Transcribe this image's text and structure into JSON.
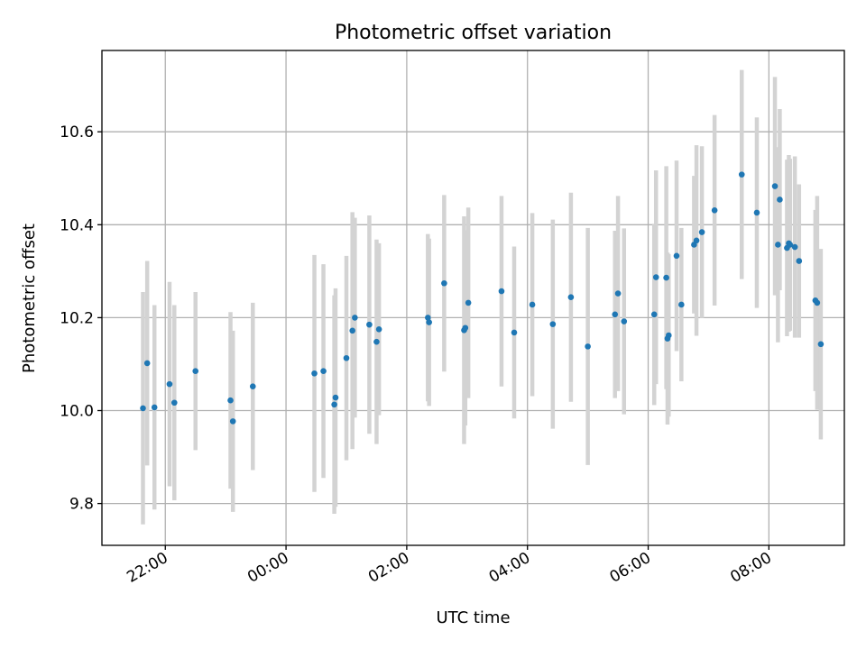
{
  "chart_data": {
    "type": "scatter",
    "title": "Photometric offset variation",
    "xlabel": "UTC time",
    "ylabel": "Photometric offset",
    "x_unit": "hours",
    "xlim": [
      20.95,
      33.25
    ],
    "ylim": [
      9.71,
      10.775
    ],
    "x_ticks": [
      {
        "value": 22,
        "label": "22:00"
      },
      {
        "value": 24,
        "label": "00:00"
      },
      {
        "value": 26,
        "label": "02:00"
      },
      {
        "value": 28,
        "label": "04:00"
      },
      {
        "value": 30,
        "label": "06:00"
      },
      {
        "value": 32,
        "label": "08:00"
      }
    ],
    "y_ticks": [
      9.8,
      10.0,
      10.2,
      10.4,
      10.6
    ],
    "grid": true,
    "colors": {
      "point": "#1f77b4",
      "errorbar": "#d3d3d3"
    },
    "series": [
      {
        "x_time": [
          "21:38",
          "21:42",
          "21:49",
          "22:04",
          "22:09",
          "22:30",
          "23:05",
          "23:07",
          "23:27",
          "00:28",
          "00:37",
          "00:48",
          "00:49",
          "01:00",
          "01:06",
          "01:08",
          "01:23",
          "01:30",
          "01:32",
          "02:21",
          "02:22",
          "02:37",
          "02:57",
          "02:58",
          "03:01",
          "03:34",
          "03:47",
          "04:05",
          "04:25",
          "04:43",
          "05:00",
          "05:27",
          "05:30",
          "05:36",
          "06:06",
          "06:08",
          "06:18",
          "06:19",
          "06:20",
          "06:28",
          "06:33",
          "06:46",
          "06:48",
          "06:53",
          "07:06",
          "07:33",
          "07:48",
          "08:06",
          "08:09",
          "08:11",
          "08:18",
          "08:20",
          "08:21",
          "08:26",
          "08:30",
          "08:46",
          "08:48",
          "08:52"
        ],
        "x": [
          21.63,
          21.7,
          21.82,
          22.07,
          22.15,
          22.5,
          23.08,
          23.12,
          23.45,
          24.47,
          24.62,
          24.8,
          24.82,
          25.0,
          25.1,
          25.14,
          25.38,
          25.5,
          25.54,
          26.35,
          26.37,
          26.62,
          26.95,
          26.97,
          27.02,
          27.57,
          27.78,
          28.08,
          28.42,
          28.72,
          29.0,
          29.45,
          29.5,
          29.6,
          30.1,
          30.13,
          30.3,
          30.32,
          30.34,
          30.47,
          30.55,
          30.76,
          30.8,
          30.89,
          31.1,
          31.55,
          31.8,
          32.1,
          32.15,
          32.18,
          32.3,
          32.33,
          32.35,
          32.43,
          32.5,
          32.77,
          32.8,
          32.86
        ],
        "y": [
          10.005,
          10.102,
          10.007,
          10.057,
          10.017,
          10.085,
          10.022,
          9.977,
          10.052,
          10.08,
          10.085,
          10.013,
          10.028,
          10.113,
          10.172,
          10.2,
          10.185,
          10.148,
          10.175,
          10.2,
          10.19,
          10.274,
          10.173,
          10.178,
          10.232,
          10.257,
          10.168,
          10.228,
          10.186,
          10.244,
          10.138,
          10.207,
          10.252,
          10.192,
          10.207,
          10.287,
          10.286,
          10.155,
          10.162,
          10.333,
          10.228,
          10.357,
          10.366,
          10.384,
          10.431,
          10.508,
          10.426,
          10.483,
          10.357,
          10.454,
          10.35,
          10.36,
          10.357,
          10.352,
          10.322,
          10.237,
          10.232,
          10.143
        ],
        "yerr": [
          0.25,
          0.22,
          0.22,
          0.22,
          0.21,
          0.17,
          0.19,
          0.195,
          0.18,
          0.255,
          0.23,
          0.235,
          0.235,
          0.22,
          0.255,
          0.215,
          0.235,
          0.22,
          0.185,
          0.18,
          0.18,
          0.19,
          0.245,
          0.21,
          0.205,
          0.205,
          0.185,
          0.197,
          0.225,
          0.225,
          0.255,
          0.18,
          0.21,
          0.2,
          0.195,
          0.23,
          0.24,
          0.185,
          0.175,
          0.205,
          0.165,
          0.148,
          0.205,
          0.185,
          0.205,
          0.225,
          0.205,
          0.235,
          0.21,
          0.195,
          0.19,
          0.19,
          0.185,
          0.195,
          0.165,
          0.195,
          0.23,
          0.205
        ]
      }
    ]
  }
}
